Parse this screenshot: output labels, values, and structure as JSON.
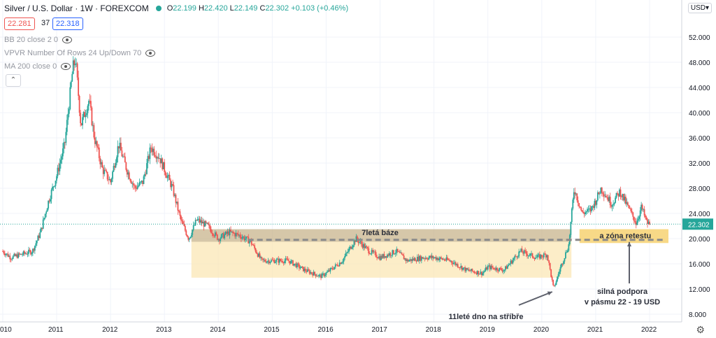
{
  "header": {
    "symbol": "Silver / U.S. Dollar · 1W · FOREXCOM",
    "open": "22.199",
    "high": "22.420",
    "low": "22.149",
    "close": "22.302",
    "change": "+0.103 (+0.46%)",
    "O": "O",
    "H": "H",
    "L": "L",
    "C": "C"
  },
  "quote": {
    "bid": "22.281",
    "spread": "37",
    "ask": "22.318"
  },
  "indicators": [
    "BB 20 close 2 0",
    "VPVR Number Of Rows 24 Up/Down 70",
    "MA 200 close 0"
  ],
  "collapse_label": "⌃",
  "currency": "USD▾",
  "settings_icon": "gear-icon",
  "colors": {
    "up": "#26a69a",
    "down": "#ef5350",
    "price_line": "#26a69a",
    "zone": "#f7d57a",
    "base": "#c8b48c"
  },
  "chart_data": {
    "type": "candlestick",
    "unit": "USD",
    "x_ticks": [
      "010",
      "2011",
      "2012",
      "2013",
      "2014",
      "2015",
      "2016",
      "2017",
      "2018",
      "2019",
      "2020",
      "2021",
      "2022"
    ],
    "y_ticks": [
      "8.000",
      "12.000",
      "16.000",
      "20.000",
      "24.000",
      "28.000",
      "32.000",
      "36.000",
      "40.000",
      "44.000",
      "48.000",
      "52.000"
    ],
    "ylim": [
      6,
      54
    ],
    "xlim": [
      2010.0,
      2022.55
    ],
    "last_price": "22.302",
    "last_value": 22.302,
    "path": [
      [
        2010.0,
        18.0
      ],
      [
        2010.15,
        17.0
      ],
      [
        2010.35,
        17.5
      ],
      [
        2010.55,
        18.0
      ],
      [
        2010.7,
        21.0
      ],
      [
        2010.85,
        26.0
      ],
      [
        2011.0,
        30.0
      ],
      [
        2011.15,
        35.0
      ],
      [
        2011.3,
        47.0
      ],
      [
        2011.35,
        48.5
      ],
      [
        2011.45,
        38.0
      ],
      [
        2011.6,
        42.0
      ],
      [
        2011.7,
        36.0
      ],
      [
        2011.85,
        31.0
      ],
      [
        2012.0,
        29.0
      ],
      [
        2012.15,
        35.0
      ],
      [
        2012.3,
        31.0
      ],
      [
        2012.45,
        28.0
      ],
      [
        2012.6,
        29.0
      ],
      [
        2012.75,
        34.5
      ],
      [
        2012.9,
        33.0
      ],
      [
        2013.0,
        31.0
      ],
      [
        2013.15,
        28.0
      ],
      [
        2013.3,
        23.0
      ],
      [
        2013.45,
        20.0
      ],
      [
        2013.6,
        23.0
      ],
      [
        2013.8,
        22.0
      ],
      [
        2014.0,
        20.0
      ],
      [
        2014.2,
        21.0
      ],
      [
        2014.4,
        20.5
      ],
      [
        2014.6,
        19.5
      ],
      [
        2014.8,
        16.5
      ],
      [
        2015.0,
        16.5
      ],
      [
        2015.3,
        16.5
      ],
      [
        2015.6,
        15.0
      ],
      [
        2015.9,
        14.0
      ],
      [
        2016.0,
        14.5
      ],
      [
        2016.3,
        16.5
      ],
      [
        2016.55,
        20.0
      ],
      [
        2016.8,
        18.0
      ],
      [
        2017.0,
        17.0
      ],
      [
        2017.3,
        18.0
      ],
      [
        2017.5,
        16.5
      ],
      [
        2017.8,
        17.0
      ],
      [
        2018.0,
        17.0
      ],
      [
        2018.3,
        16.5
      ],
      [
        2018.6,
        15.0
      ],
      [
        2018.9,
        14.5
      ],
      [
        2019.0,
        15.5
      ],
      [
        2019.3,
        15.0
      ],
      [
        2019.6,
        18.0
      ],
      [
        2019.9,
        17.0
      ],
      [
        2020.1,
        17.5
      ],
      [
        2020.22,
        12.0
      ],
      [
        2020.35,
        15.5
      ],
      [
        2020.5,
        19.0
      ],
      [
        2020.6,
        28.0
      ],
      [
        2020.75,
        24.0
      ],
      [
        2020.9,
        24.5
      ],
      [
        2021.0,
        26.0
      ],
      [
        2021.1,
        28.0
      ],
      [
        2021.3,
        25.5
      ],
      [
        2021.45,
        27.5
      ],
      [
        2021.6,
        25.0
      ],
      [
        2021.75,
        22.5
      ],
      [
        2021.85,
        25.0
      ],
      [
        2021.95,
        22.5
      ],
      [
        2022.0,
        22.3
      ]
    ],
    "annotations": {
      "base_label": "7letá báze",
      "retest_label": "a zóna retestu",
      "support_label_1": "silná podpora",
      "support_label_2": "v pásmu 22 - 19 USD",
      "bottom_label": "11leté dno na stříbře"
    },
    "zones": {
      "base": {
        "x_from": 2013.5,
        "x_to": 2020.55,
        "y_from": 19.5,
        "y_to": 21.5
      },
      "retest": {
        "x_from": 2020.7,
        "x_to": 2022.35,
        "y_from": 19.3,
        "y_to": 21.5
      },
      "consolidation": {
        "x_from": 2013.5,
        "x_to": 2020.55,
        "y_from": 13.8,
        "y_to": 19.5
      },
      "support_line_y": 19.8
    }
  }
}
